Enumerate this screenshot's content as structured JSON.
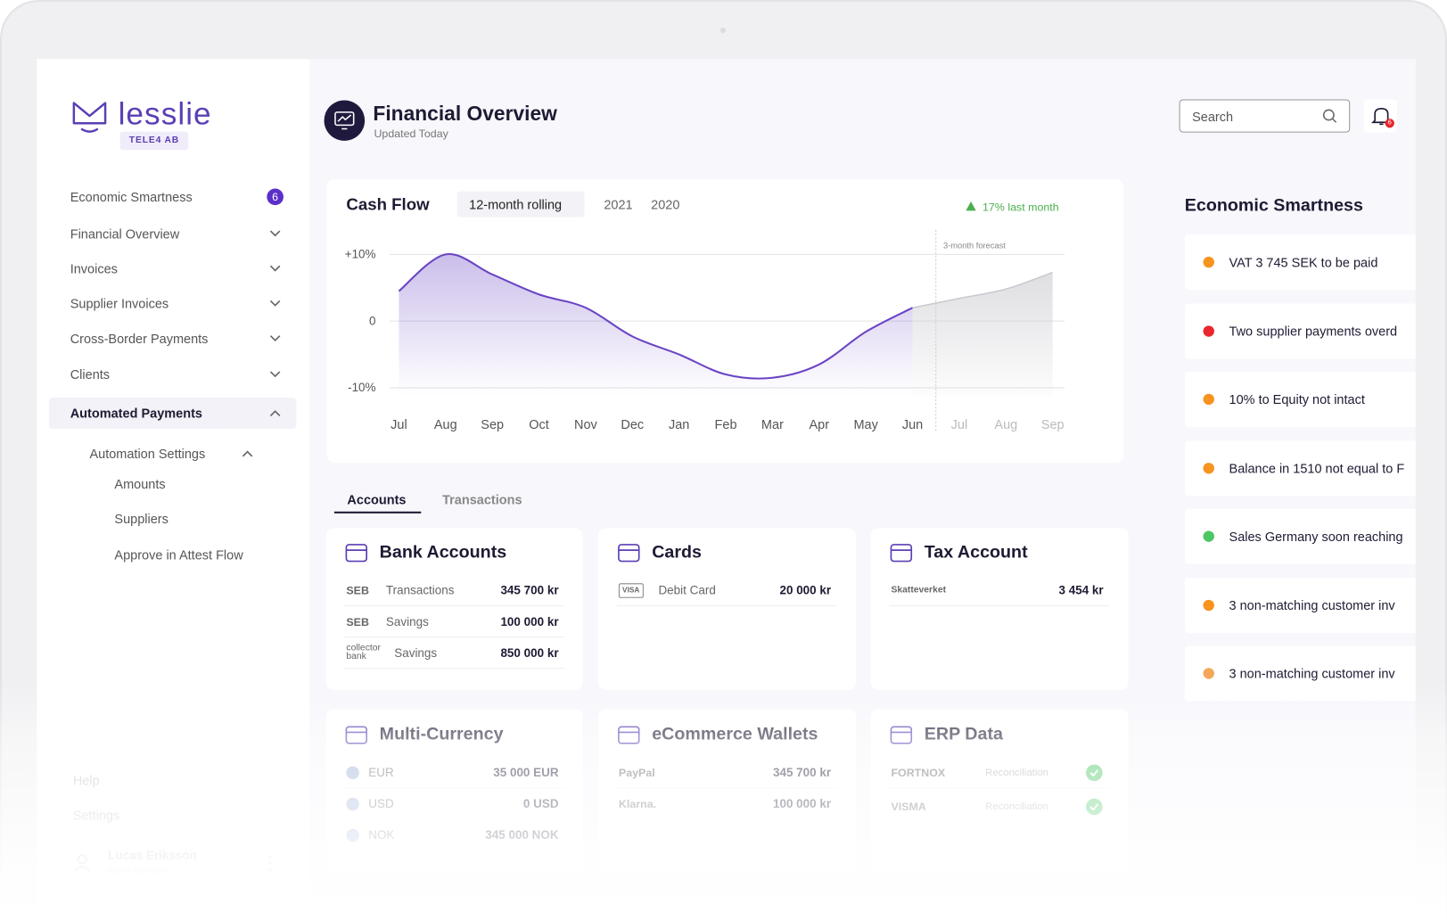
{
  "brand": {
    "name": "lesslie",
    "company": "TELE4 AB"
  },
  "sidebar": {
    "nav": [
      {
        "label": "Economic Smartness",
        "badge": 6
      },
      {
        "label": "Financial Overview"
      },
      {
        "label": "Invoices"
      },
      {
        "label": "Supplier Invoices"
      },
      {
        "label": "Cross-Border Payments"
      },
      {
        "label": "Clients"
      },
      {
        "label": "Automated Payments"
      }
    ],
    "subnav": {
      "label": "Automation Settings",
      "items": [
        "Amounts",
        "Suppliers",
        "Approve in Attest Flow"
      ]
    },
    "footer": [
      "Help",
      "Settings"
    ],
    "user": {
      "name": "Lucas Eriksson",
      "role": "Main Account"
    }
  },
  "header": {
    "title": "Financial Overview",
    "subtitle": "Updated Today",
    "search": "Search",
    "notifications": 6
  },
  "cash_flow": {
    "type": "line",
    "title": "Cash Flow",
    "tabs": [
      "12-month rolling",
      "2021",
      "2020"
    ],
    "trend": "17% last month",
    "forecast_label": "3-month forecast",
    "categories": [
      "Jul",
      "Aug",
      "Sep",
      "Oct",
      "Nov",
      "Dec",
      "Jan",
      "Feb",
      "Mar",
      "Apr",
      "May",
      "Jun",
      "Jul",
      "Aug",
      "Sep"
    ],
    "series": [
      {
        "color": "#6a45c4",
        "values": [
          4.5,
          10,
          7,
          4,
          2,
          -2.3,
          -5,
          -8,
          -8.5,
          -6.5,
          -1.6,
          2,
          null,
          null,
          null
        ]
      },
      {
        "color": "#c9c9cf",
        "values": [
          null,
          null,
          null,
          null,
          null,
          null,
          null,
          null,
          null,
          null,
          null,
          2,
          3.4,
          4.8,
          7.3
        ]
      }
    ],
    "ylim": [
      -12,
      12
    ],
    "yticks": [
      {
        "value": 10,
        "label": "+10%"
      },
      0,
      {
        "value": -10,
        "label": "-10%"
      }
    ]
  },
  "tabs": [
    "Accounts",
    "Transactions"
  ],
  "cards": [
    {
      "title": "Bank Accounts",
      "rows": [
        {
          "provider": "SEB",
          "label": "Transactions",
          "amount": "345 700 kr"
        },
        {
          "provider": "SEB",
          "label": "Savings",
          "amount": "100 000 kr"
        },
        {
          "provider": "collector bank",
          "label": "Savings",
          "amount": "850 000 kr"
        }
      ]
    },
    {
      "title": "Cards",
      "rows": [
        {
          "provider": "VISA",
          "label": "Debit Card",
          "amount": "20 000 kr"
        }
      ]
    },
    {
      "title": "Tax Account",
      "rows": [
        {
          "provider": "Skatteverket",
          "amount": "3 454 kr"
        }
      ]
    },
    {
      "title": "Multi-Currency",
      "rows": [
        {
          "label": "EUR",
          "amount": "35 000 EUR"
        },
        {
          "label": "USD",
          "amount": "0 USD"
        },
        {
          "label": "NOK",
          "amount": "345 000 NOK"
        }
      ]
    },
    {
      "title": "eCommerce Wallets",
      "rows": [
        {
          "provider": "PayPal",
          "amount": "345 700 kr"
        },
        {
          "provider": "Klarna.",
          "amount": "100 000 kr"
        }
      ]
    },
    {
      "title": "ERP Data",
      "rows": [
        {
          "provider": "FORTNOX",
          "label": "Reconciliation"
        },
        {
          "provider": "VISMA",
          "label": "Reconciliation"
        }
      ]
    }
  ],
  "economic_smartness": {
    "title": "Economic Smartness",
    "items": [
      {
        "text": "VAT 3 745 SEK to be paid",
        "color": "#f7931e"
      },
      {
        "text": "Two supplier payments overd",
        "color": "#e8262b"
      },
      {
        "text": "10% to Equity not intact",
        "color": "#f7931e"
      },
      {
        "text": "Balance in 1510 not equal to F",
        "color": "#f7931e"
      },
      {
        "text": "Sales Germany soon reaching",
        "color": "#4cc764"
      },
      {
        "text": "3 non-matching customer inv",
        "color": "#f7931e"
      },
      {
        "text": "3 non-matching customer inv",
        "color": "#f6a65a"
      }
    ]
  }
}
